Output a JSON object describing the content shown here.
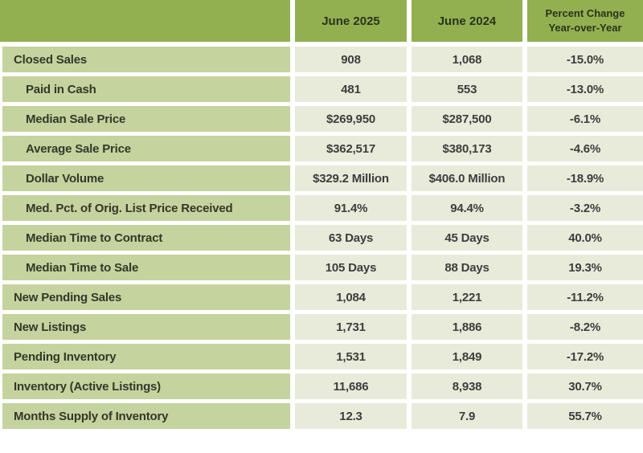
{
  "table": {
    "header": {
      "col_jun_2025": "June 2025",
      "col_jun_2024": "June 2024",
      "col_pct_line1": "Percent Change",
      "col_pct_line2": "Year-over-Year"
    },
    "rows": [
      {
        "label": "Closed Sales",
        "jun_2025": "908",
        "jun_2024": "1,068",
        "pct_change": "-15.0%"
      },
      {
        "label": "Paid in Cash",
        "jun_2025": "481",
        "jun_2024": "553",
        "pct_change": "-13.0%"
      },
      {
        "label": "Median Sale Price",
        "jun_2025": "$269,950",
        "jun_2024": "$287,500",
        "pct_change": "-6.1%"
      },
      {
        "label": "Average Sale Price",
        "jun_2025": "$362,517",
        "jun_2024": "$380,173",
        "pct_change": "-4.6%"
      },
      {
        "label": "Dollar Volume",
        "jun_2025": "$329.2 Million",
        "jun_2024": "$406.0 Million",
        "pct_change": "-18.9%"
      },
      {
        "label": "Med. Pct. of Orig. List Price Received",
        "jun_2025": "91.4%",
        "jun_2024": "94.4%",
        "pct_change": "-3.2%"
      },
      {
        "label": "Median Time to Contract",
        "jun_2025": "63 Days",
        "jun_2024": "45 Days",
        "pct_change": "40.0%"
      },
      {
        "label": "Median Time to Sale",
        "jun_2025": "105 Days",
        "jun_2024": "88 Days",
        "pct_change": "19.3%"
      },
      {
        "label": "New Pending Sales",
        "jun_2025": "1,084",
        "jun_2024": "1,221",
        "pct_change": "-11.2%"
      },
      {
        "label": "New Listings",
        "jun_2025": "1,731",
        "jun_2024": "1,886",
        "pct_change": "-8.2%"
      },
      {
        "label": "Pending Inventory",
        "jun_2025": "1,531",
        "jun_2024": "1,849",
        "pct_change": "-17.2%"
      },
      {
        "label": "Inventory (Active Listings)",
        "jun_2025": "11,686",
        "jun_2024": "8,938",
        "pct_change": "30.7%"
      },
      {
        "label": "Months Supply of Inventory",
        "jun_2025": "12.3",
        "jun_2024": "7.9",
        "pct_change": "55.7%"
      }
    ],
    "indented_row_indexes": [
      1,
      2,
      3,
      4,
      5,
      6,
      7
    ]
  },
  "colors": {
    "header_bg": "#92b050",
    "label_cell_bg": "#c5d39e",
    "value_cell_bg": "#e9ebda",
    "gap": "#ffffff",
    "header_text": "#2b331c",
    "label_text": "#34382a",
    "value_text": "#3d3d3d"
  }
}
